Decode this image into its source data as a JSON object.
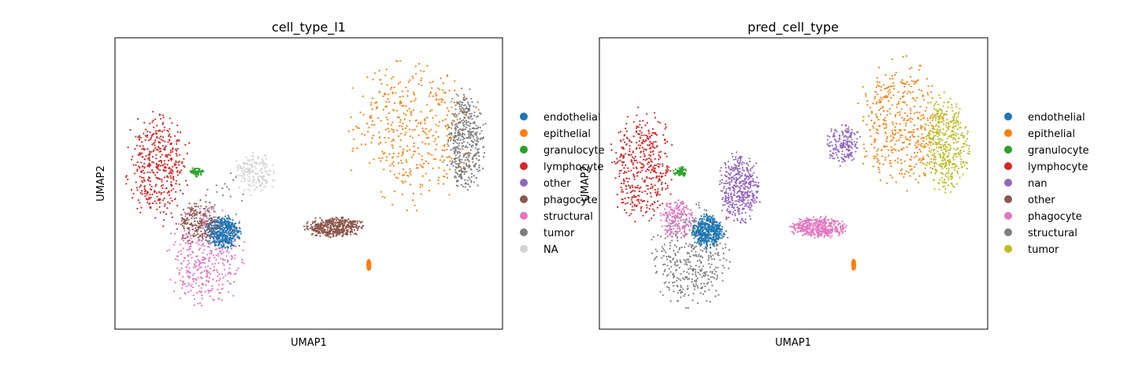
{
  "chart_data": [
    {
      "type": "scatter",
      "title": "cell_type_l1",
      "xlabel": "UMAP1",
      "ylabel": "UMAP2",
      "ticks": "none",
      "legend_position": "right",
      "legend": [
        {
          "name": "endothelial",
          "color": "#1f77b4"
        },
        {
          "name": "epithelial",
          "color": "#ff7f0e"
        },
        {
          "name": "granulocyte",
          "color": "#2ca02c"
        },
        {
          "name": "lymphocyte",
          "color": "#d62728"
        },
        {
          "name": "other",
          "color": "#9467bd"
        },
        {
          "name": "phagocyte",
          "color": "#8c564b"
        },
        {
          "name": "structural",
          "color": "#e377c2"
        },
        {
          "name": "tumor",
          "color": "#7f7f7f"
        },
        {
          "name": "NA",
          "color": "#d3d3d3"
        }
      ],
      "clusters": [
        {
          "category": "lymphocyte",
          "x": [
            2,
            20
          ],
          "y": [
            34,
            77
          ],
          "density": "high"
        },
        {
          "category": "structural",
          "x": [
            12,
            35
          ],
          "y": [
            5,
            45
          ],
          "density": "high"
        },
        {
          "category": "endothelial",
          "x": [
            23,
            33
          ],
          "y": [
            27,
            40
          ],
          "density": "high"
        },
        {
          "category": "phagocyte",
          "x": [
            15,
            28
          ],
          "y": [
            28,
            45
          ],
          "density": "medium"
        },
        {
          "category": "tumor",
          "x": [
            18,
            36
          ],
          "y": [
            20,
            58
          ],
          "density": "low"
        },
        {
          "category": "NA",
          "x": [
            30,
            42
          ],
          "y": [
            45,
            62
          ],
          "density": "medium"
        },
        {
          "category": "granulocyte",
          "x": [
            19,
            23
          ],
          "y": [
            52,
            56
          ],
          "density": "low"
        },
        {
          "category": "phagocyte",
          "x": [
            48,
            65
          ],
          "y": [
            31,
            39
          ],
          "density": "high"
        },
        {
          "category": "epithelial",
          "x": [
            58,
            95
          ],
          "y": [
            40,
            96
          ],
          "density": "high"
        },
        {
          "category": "tumor",
          "x": [
            85,
            96
          ],
          "y": [
            45,
            85
          ],
          "density": "high"
        },
        {
          "category": "epithelial",
          "x": [
            65,
            66
          ],
          "y": [
            20,
            24
          ],
          "density": "high"
        }
      ]
    },
    {
      "type": "scatter",
      "title": "pred_cell_type",
      "xlabel": "UMAP1",
      "ylabel": "UMAP2",
      "ticks": "none",
      "legend_position": "right",
      "legend": [
        {
          "name": "endothelial",
          "color": "#1f77b4"
        },
        {
          "name": "epithelial",
          "color": "#ff7f0e"
        },
        {
          "name": "granulocyte",
          "color": "#2ca02c"
        },
        {
          "name": "lymphocyte",
          "color": "#d62728"
        },
        {
          "name": "nan",
          "color": "#9467bd"
        },
        {
          "name": "other",
          "color": "#8c564b"
        },
        {
          "name": "phagocyte",
          "color": "#e377c2"
        },
        {
          "name": "structural",
          "color": "#7f7f7f"
        },
        {
          "name": "tumor",
          "color": "#bcbd22"
        }
      ],
      "clusters": [
        {
          "category": "lymphocyte",
          "x": [
            2,
            20
          ],
          "y": [
            34,
            77
          ],
          "density": "high"
        },
        {
          "category": "structural",
          "x": [
            12,
            35
          ],
          "y": [
            5,
            45
          ],
          "density": "high"
        },
        {
          "category": "endothelial",
          "x": [
            23,
            33
          ],
          "y": [
            27,
            40
          ],
          "density": "high"
        },
        {
          "category": "phagocyte",
          "x": [
            15,
            25
          ],
          "y": [
            30,
            45
          ],
          "density": "medium"
        },
        {
          "category": "nan",
          "x": [
            30,
            42
          ],
          "y": [
            35,
            62
          ],
          "density": "high"
        },
        {
          "category": "granulocyte",
          "x": [
            19,
            23
          ],
          "y": [
            52,
            56
          ],
          "density": "low"
        },
        {
          "category": "phagocyte",
          "x": [
            48,
            65
          ],
          "y": [
            31,
            39
          ],
          "density": "high"
        },
        {
          "category": "epithelial",
          "x": [
            65,
            90
          ],
          "y": [
            45,
            96
          ],
          "density": "high"
        },
        {
          "category": "tumor",
          "x": [
            82,
            96
          ],
          "y": [
            45,
            82
          ],
          "density": "high"
        },
        {
          "category": "nan",
          "x": [
            58,
            68
          ],
          "y": [
            55,
            72
          ],
          "density": "medium"
        },
        {
          "category": "epithelial",
          "x": [
            65,
            66
          ],
          "y": [
            20,
            24
          ],
          "density": "high"
        }
      ]
    }
  ]
}
